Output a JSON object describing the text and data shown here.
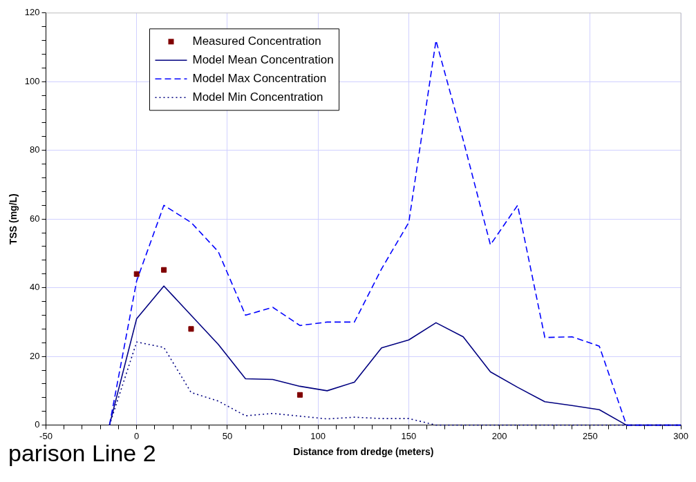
{
  "chart_data": {
    "type": "line",
    "xlabel": "Distance from dredge (meters)",
    "ylabel": "TSS (mg/L)",
    "annotations": [
      "parison Line 2"
    ],
    "xlim": [
      -50,
      300
    ],
    "xticks": [
      -50,
      {
        "value": -40,
        "label": null
      },
      {
        "value": -30,
        "label": null
      },
      {
        "value": -20,
        "label": null
      },
      {
        "value": -10,
        "label": null
      },
      0,
      {
        "value": 10,
        "label": null
      },
      {
        "value": 20,
        "label": null
      },
      {
        "value": 30,
        "label": null
      },
      {
        "value": 40,
        "label": null
      },
      50,
      {
        "value": 60,
        "label": null
      },
      {
        "value": 70,
        "label": null
      },
      {
        "value": 80,
        "label": null
      },
      {
        "value": 90,
        "label": null
      },
      100,
      {
        "value": 110,
        "label": null
      },
      {
        "value": 120,
        "label": null
      },
      {
        "value": 130,
        "label": null
      },
      {
        "value": 140,
        "label": null
      },
      150,
      {
        "value": 160,
        "label": null
      },
      {
        "value": 170,
        "label": null
      },
      {
        "value": 180,
        "label": null
      },
      {
        "value": 190,
        "label": null
      },
      200,
      {
        "value": 210,
        "label": null
      },
      {
        "value": 220,
        "label": null
      },
      {
        "value": 230,
        "label": null
      },
      {
        "value": 240,
        "label": null
      },
      250,
      {
        "value": 260,
        "label": null
      },
      {
        "value": 270,
        "label": null
      },
      {
        "value": 280,
        "label": null
      },
      {
        "value": 290,
        "label": null
      },
      300
    ],
    "ylim": [
      0,
      120
    ],
    "yticks": [
      0,
      {
        "value": 4,
        "label": null
      },
      {
        "value": 8,
        "label": null
      },
      {
        "value": 12,
        "label": null
      },
      {
        "value": 16,
        "label": null
      },
      20,
      {
        "value": 24,
        "label": null
      },
      {
        "value": 28,
        "label": null
      },
      {
        "value": 32,
        "label": null
      },
      {
        "value": 36,
        "label": null
      },
      40,
      {
        "value": 44,
        "label": null
      },
      {
        "value": 48,
        "label": null
      },
      {
        "value": 52,
        "label": null
      },
      {
        "value": 56,
        "label": null
      },
      60,
      {
        "value": 64,
        "label": null
      },
      {
        "value": 68,
        "label": null
      },
      {
        "value": 72,
        "label": null
      },
      {
        "value": 76,
        "label": null
      },
      80,
      {
        "value": 84,
        "label": null
      },
      {
        "value": 88,
        "label": null
      },
      {
        "value": 92,
        "label": null
      },
      {
        "value": 96,
        "label": null
      },
      100,
      {
        "value": 104,
        "label": null
      },
      {
        "value": 108,
        "label": null
      },
      {
        "value": 112,
        "label": null
      },
      {
        "value": 116,
        "label": null
      },
      120
    ],
    "grid": true,
    "legend": "top left",
    "series": [
      {
        "name": "Measured Concentration",
        "type": "scatter",
        "marker": "square",
        "color": "#800000",
        "x": [
          0,
          15,
          30,
          90
        ],
        "values": [
          44,
          45.2,
          28,
          8.8
        ]
      },
      {
        "name": "Model Mean Concentration",
        "type": "line",
        "marker": "none",
        "line_style": "solid",
        "color": "#000080",
        "x": [
          -15,
          0,
          15,
          30,
          45,
          60,
          75,
          90,
          105,
          120,
          135,
          150,
          165,
          180,
          195,
          210,
          225,
          240,
          255,
          270,
          285,
          300
        ],
        "values": [
          0,
          31,
          40.5,
          32,
          23.5,
          13.5,
          13.3,
          11.3,
          10,
          12.5,
          22.5,
          24.8,
          29.8,
          25.7,
          15.5,
          11,
          6.8,
          5.7,
          4.5,
          0,
          0,
          0
        ]
      },
      {
        "name": "Model Max Concentration",
        "type": "line",
        "marker": "none",
        "line_style": "dashed",
        "color": "#0000ff",
        "x": [
          -15,
          0,
          15,
          30,
          45,
          60,
          75,
          90,
          105,
          120,
          135,
          150,
          165,
          180,
          195,
          210,
          225,
          240,
          255,
          270,
          285,
          300
        ],
        "values": [
          0,
          42,
          64,
          59,
          50.5,
          32,
          34.3,
          29,
          30,
          30,
          45.5,
          59,
          112,
          83,
          52.5,
          64,
          25.5,
          25.7,
          23,
          0,
          0,
          0
        ]
      },
      {
        "name": "Model Min Concentration",
        "type": "line",
        "marker": "none",
        "line_style": "dotted",
        "color": "#000080",
        "x": [
          -15,
          0,
          15,
          30,
          45,
          60,
          75,
          90,
          105,
          120,
          135,
          150,
          165,
          180,
          195,
          210,
          225,
          240,
          255,
          270,
          285,
          300
        ],
        "values": [
          0,
          24.2,
          22.6,
          9.5,
          7,
          2.7,
          3.4,
          2.6,
          1.8,
          2.3,
          1.9,
          1.9,
          0,
          0,
          0,
          0,
          0,
          0,
          0,
          0,
          0,
          0
        ]
      }
    ]
  }
}
